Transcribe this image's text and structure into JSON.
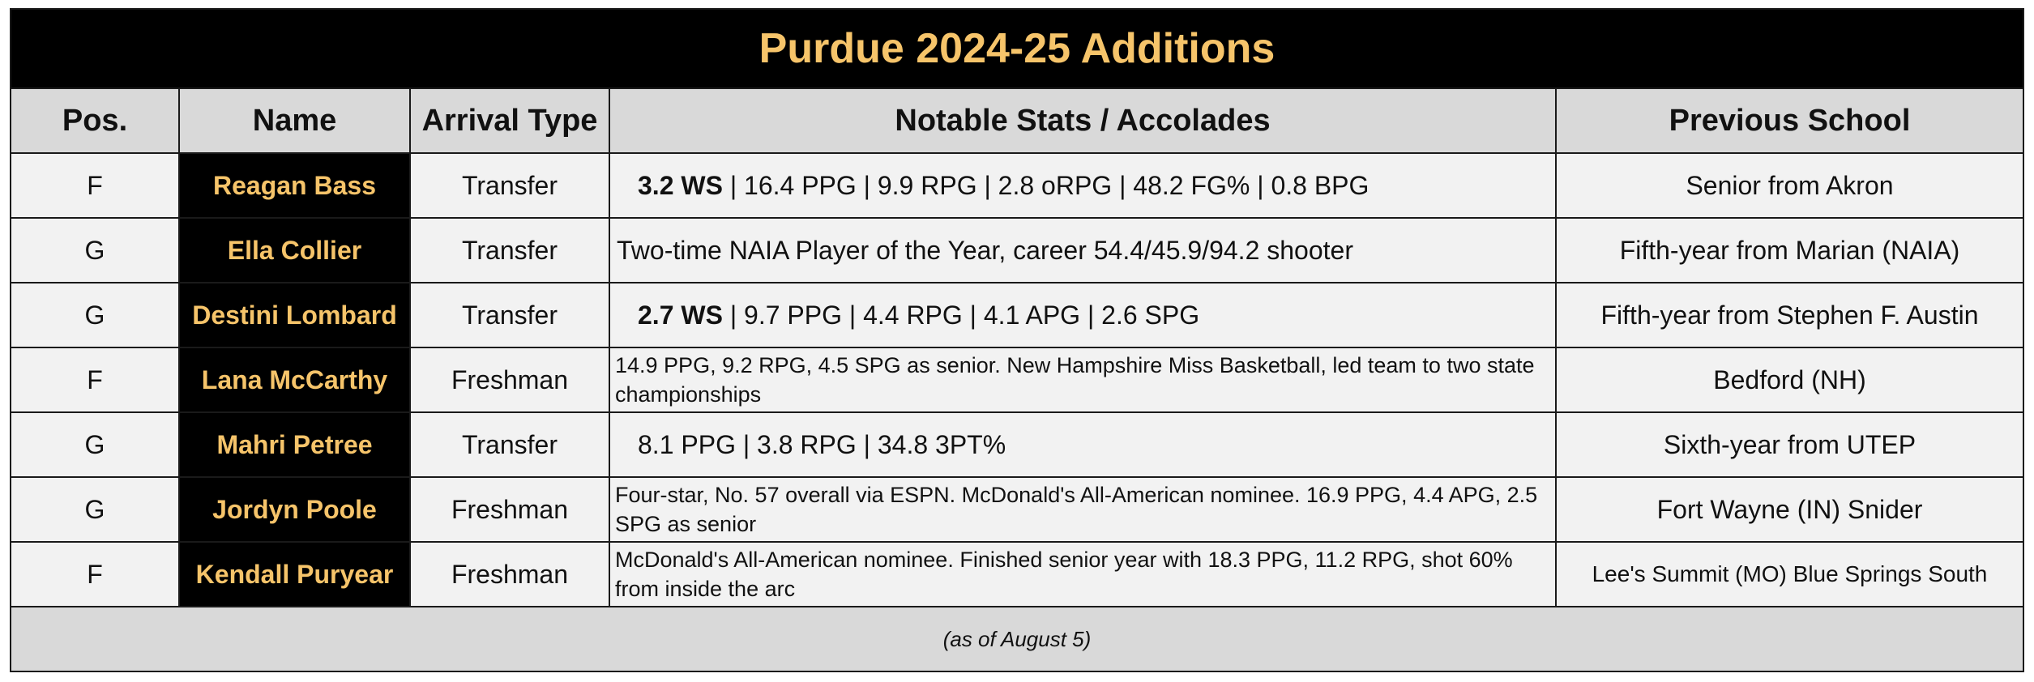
{
  "title": "Purdue 2024-25 Additions",
  "headers": {
    "pos": "Pos.",
    "name": "Name",
    "arrival": "Arrival Type",
    "stats": "Notable Stats / Accolades",
    "school": "Previous School"
  },
  "rows": [
    {
      "pos": "F",
      "name": "Reagan Bass",
      "arrival": "Transfer",
      "ws": "3.2 WS",
      "stats": " | 16.4 PPG | 9.9 RPG | 2.8 oRPG | 48.2 FG% | 0.8 BPG",
      "school": "Senior from Akron"
    },
    {
      "pos": "G",
      "name": "Ella Collier",
      "arrival": "Transfer",
      "ws": "",
      "stats": "Two-time NAIA Player of the Year, career 54.4/45.9/94.2 shooter",
      "school": "Fifth-year from Marian (NAIA)"
    },
    {
      "pos": "G",
      "name": "Destini Lombard",
      "arrival": "Transfer",
      "ws": "2.7 WS",
      "stats": " | 9.7 PPG | 4.4 RPG | 4.1 APG | 2.6 SPG",
      "school": "Fifth-year from Stephen F. Austin"
    },
    {
      "pos": "F",
      "name": "Lana McCarthy",
      "arrival": "Freshman",
      "ws": "",
      "stats": "14.9 PPG, 9.2 RPG, 4.5 SPG as senior. New Hampshire Miss Basketball, led team to two state championships",
      "school": "Bedford (NH)"
    },
    {
      "pos": "G",
      "name": "Mahri Petree",
      "arrival": "Transfer",
      "ws": "",
      "stats": "8.1 PPG | 3.8 RPG | 34.8 3PT%",
      "school": "Sixth-year from UTEP"
    },
    {
      "pos": "G",
      "name": "Jordyn Poole",
      "arrival": "Freshman",
      "ws": "",
      "stats": "Four-star, No. 57 overall via ESPN. McDonald's All-American nominee. 16.9 PPG, 4.4 APG, 2.5 SPG as senior",
      "school": "Fort Wayne (IN) Snider"
    },
    {
      "pos": "F",
      "name": "Kendall Puryear",
      "arrival": "Freshman",
      "ws": "",
      "stats": "McDonald's All-American nominee. Finished senior year with 18.3 PPG, 11.2 RPG, shot 60% from inside the arc",
      "school": "Lee's Summit (MO) Blue Springs South"
    }
  ],
  "footnote": "(as of August 5)"
}
